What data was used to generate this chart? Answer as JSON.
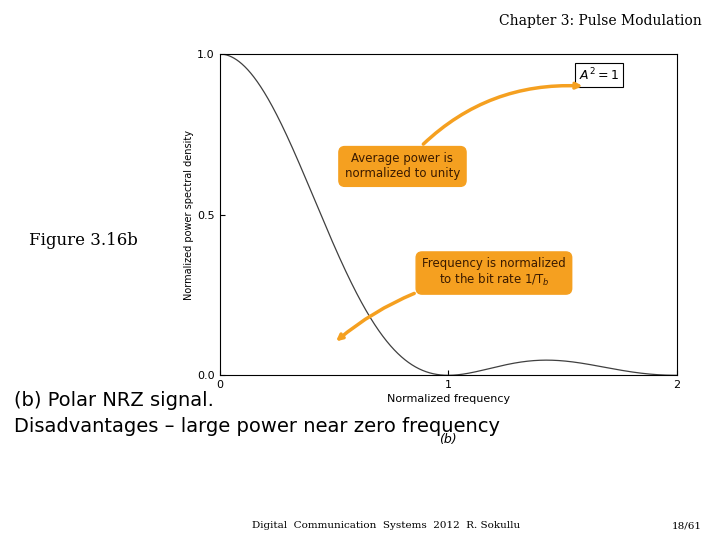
{
  "title": "Chapter 3: Pulse Modulation",
  "figure_label": "Figure 3.16b",
  "subplot_label": "(b)",
  "xlabel": "Normalized frequency",
  "ylabel": "Normalized power spectral density",
  "annotation1_text": "Average power is\nnormalized to unity",
  "annotation2_text": "Frequency is normalized\nto the bit rate 1/T$_b$",
  "box_color": "#F5A020",
  "box_text_color": "#3A1A00",
  "bottom_left_text": "(b) Polar NRZ signal.\nDisadvantages – large power near zero frequency",
  "footer_left": "Digital  Communication  Systems  2012  R. Sokullu",
  "footer_right": "18/61",
  "bg_color": "#FFFFFF",
  "line_color": "#404040",
  "xlim": [
    0,
    2
  ],
  "ylim": [
    0,
    1
  ],
  "xticks": [
    0,
    1,
    2
  ],
  "yticks": [
    0,
    0.5,
    1
  ]
}
